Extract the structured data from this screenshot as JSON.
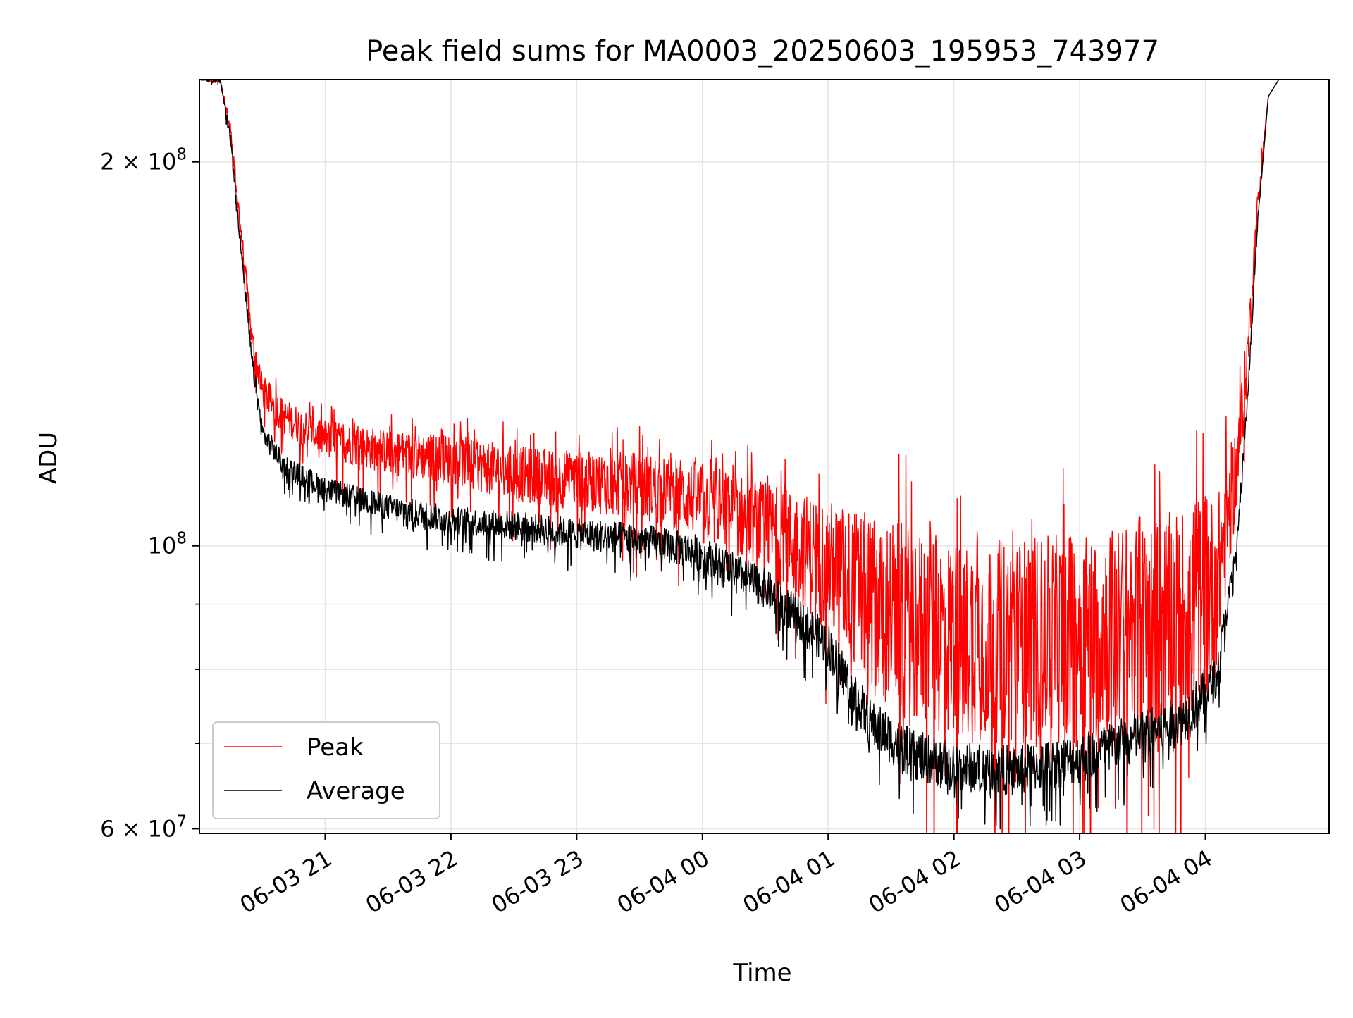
{
  "chart_data": {
    "type": "line",
    "title": "Peak field sums for MA0003_20250603_195953_743977",
    "xlabel": "Time",
    "ylabel": "ADU",
    "yscale": "log",
    "ylim": [
      59500000,
      232000000
    ],
    "xlim": [
      "2025-06-03 20:00",
      "2025-06-04 04:59"
    ],
    "grid": true,
    "legend": "lower-left",
    "x_ticks": [
      {
        "t": "2025-06-03 21:00",
        "label": "06-03 21"
      },
      {
        "t": "2025-06-03 22:00",
        "label": "06-03 22"
      },
      {
        "t": "2025-06-03 23:00",
        "label": "06-03 23"
      },
      {
        "t": "2025-06-04 00:00",
        "label": "06-04 00"
      },
      {
        "t": "2025-06-04 01:00",
        "label": "06-04 01"
      },
      {
        "t": "2025-06-04 02:00",
        "label": "06-04 02"
      },
      {
        "t": "2025-06-04 03:00",
        "label": "06-04 03"
      },
      {
        "t": "2025-06-04 04:00",
        "label": "06-04 04"
      }
    ],
    "y_major_ticks": [
      {
        "value": 100000000,
        "base": "10",
        "exp": "8",
        "mantissa": ""
      },
      {
        "value": 200000000,
        "base": "10",
        "exp": "8",
        "mantissa": "2"
      },
      {
        "value": 60000000,
        "base": "10",
        "exp": "7",
        "mantissa": "6"
      }
    ],
    "y_minor_ticks": [
      70000000,
      80000000,
      90000000
    ],
    "series": [
      {
        "name": "Peak",
        "color": "#ff0000",
        "points": [
          [
            "2025-06-03 20:00",
            232000000
          ],
          [
            "2025-06-03 20:10",
            232000000
          ],
          [
            "2025-06-03 20:15",
            210000000
          ],
          [
            "2025-06-03 20:20",
            175000000
          ],
          [
            "2025-06-03 20:25",
            145000000
          ],
          [
            "2025-06-03 20:30",
            132000000
          ],
          [
            "2025-06-03 20:40",
            126000000
          ],
          [
            "2025-06-03 21:00",
            121000000
          ],
          [
            "2025-06-03 21:30",
            118000000
          ],
          [
            "2025-06-03 22:00",
            116500000
          ],
          [
            "2025-06-03 22:30",
            113500000
          ],
          [
            "2025-06-03 23:00",
            112000000
          ],
          [
            "2025-06-03 23:30",
            111000000
          ],
          [
            "2025-06-04 00:00",
            108000000
          ],
          [
            "2025-06-04 00:30",
            103000000
          ],
          [
            "2025-06-04 01:00",
            96000000
          ],
          [
            "2025-06-04 01:20",
            90000000
          ],
          [
            "2025-06-04 01:40",
            86000000
          ],
          [
            "2025-06-04 02:00",
            84000000
          ],
          [
            "2025-06-04 02:30",
            84000000
          ],
          [
            "2025-06-04 03:00",
            84500000
          ],
          [
            "2025-06-04 03:30",
            86000000
          ],
          [
            "2025-06-04 03:50",
            88000000
          ],
          [
            "2025-06-04 04:05",
            92000000
          ],
          [
            "2025-06-04 04:15",
            115000000
          ],
          [
            "2025-06-04 04:20",
            140000000
          ],
          [
            "2025-06-04 04:25",
            185000000
          ],
          [
            "2025-06-04 04:30",
            225000000
          ],
          [
            "2025-06-04 04:35",
            232000000
          ],
          [
            "2025-06-04 04:59",
            232000000
          ]
        ],
        "noise": [
          [
            "2025-06-03 20:00",
            0
          ],
          [
            "2025-06-03 20:30",
            0.03
          ],
          [
            "2025-06-03 23:30",
            0.06
          ],
          [
            "2025-06-04 00:30",
            0.08
          ],
          [
            "2025-06-04 01:00",
            0.12
          ],
          [
            "2025-06-04 01:30",
            0.18
          ],
          [
            "2025-06-04 04:00",
            0.2
          ],
          [
            "2025-06-04 04:15",
            0.08
          ],
          [
            "2025-06-04 04:30",
            0
          ],
          [
            "2025-06-04 04:59",
            0
          ]
        ]
      },
      {
        "name": "Average",
        "color": "#000000",
        "points": [
          [
            "2025-06-03 20:00",
            232000000
          ],
          [
            "2025-06-03 20:10",
            232000000
          ],
          [
            "2025-06-03 20:15",
            208000000
          ],
          [
            "2025-06-03 20:20",
            170000000
          ],
          [
            "2025-06-03 20:25",
            140000000
          ],
          [
            "2025-06-03 20:30",
            123000000
          ],
          [
            "2025-06-03 20:40",
            116000000
          ],
          [
            "2025-06-03 21:00",
            111000000
          ],
          [
            "2025-06-03 21:30",
            107500000
          ],
          [
            "2025-06-03 22:00",
            105000000
          ],
          [
            "2025-06-03 22:30",
            104000000
          ],
          [
            "2025-06-03 23:00",
            102500000
          ],
          [
            "2025-06-03 23:30",
            101500000
          ],
          [
            "2025-06-04 00:00",
            99000000
          ],
          [
            "2025-06-04 00:30",
            93000000
          ],
          [
            "2025-06-04 01:00",
            84000000
          ],
          [
            "2025-06-04 01:20",
            73000000
          ],
          [
            "2025-06-04 01:40",
            69000000
          ],
          [
            "2025-06-04 02:00",
            67500000
          ],
          [
            "2025-06-04 02:30",
            67000000
          ],
          [
            "2025-06-04 03:00",
            68500000
          ],
          [
            "2025-06-04 03:30",
            71500000
          ],
          [
            "2025-06-04 03:50",
            73500000
          ],
          [
            "2025-06-04 04:05",
            79000000
          ],
          [
            "2025-06-04 04:15",
            100000000
          ],
          [
            "2025-06-04 04:20",
            130000000
          ],
          [
            "2025-06-04 04:25",
            180000000
          ],
          [
            "2025-06-04 04:30",
            225000000
          ],
          [
            "2025-06-04 04:35",
            232000000
          ],
          [
            "2025-06-04 04:59",
            232000000
          ]
        ],
        "noise": [
          [
            "2025-06-03 20:00",
            0
          ],
          [
            "2025-06-03 20:30",
            0.02
          ],
          [
            "2025-06-03 23:30",
            0.03
          ],
          [
            "2025-06-04 00:30",
            0.035
          ],
          [
            "2025-06-04 01:00",
            0.04
          ],
          [
            "2025-06-04 01:30",
            0.045
          ],
          [
            "2025-06-04 04:00",
            0.045
          ],
          [
            "2025-06-04 04:15",
            0.02
          ],
          [
            "2025-06-04 04:30",
            0
          ],
          [
            "2025-06-04 04:59",
            0
          ]
        ]
      }
    ]
  }
}
